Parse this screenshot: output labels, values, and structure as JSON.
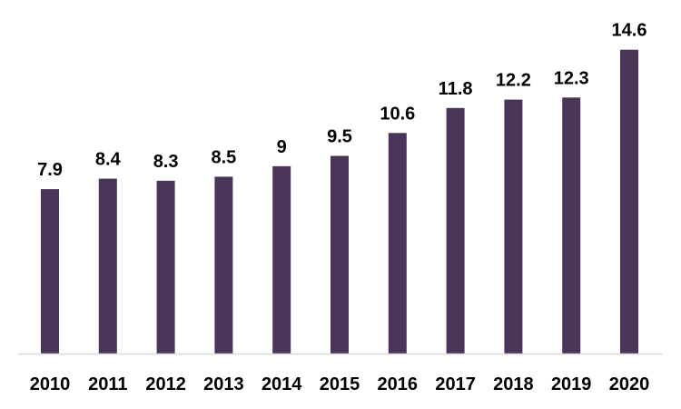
{
  "chart_data": {
    "type": "bar",
    "title": "",
    "xlabel": "",
    "ylabel": "",
    "categories": [
      "2010",
      "2011",
      "2012",
      "2013",
      "2014",
      "2015",
      "2016",
      "2017",
      "2018",
      "2019",
      "2020"
    ],
    "values": [
      7.9,
      8.4,
      8.3,
      8.5,
      9,
      9.5,
      10.6,
      11.8,
      12.2,
      12.3,
      14.6
    ],
    "value_labels": [
      "7.9",
      "8.4",
      "8.3",
      "8.5",
      "9",
      "9.5",
      "10.6",
      "11.8",
      "12.2",
      "12.3",
      "14.6"
    ],
    "ylim": [
      0,
      15
    ],
    "grid": false,
    "legend": "none",
    "colors": {
      "bar": "#4a3558",
      "axis": "#d9d9d9"
    }
  }
}
